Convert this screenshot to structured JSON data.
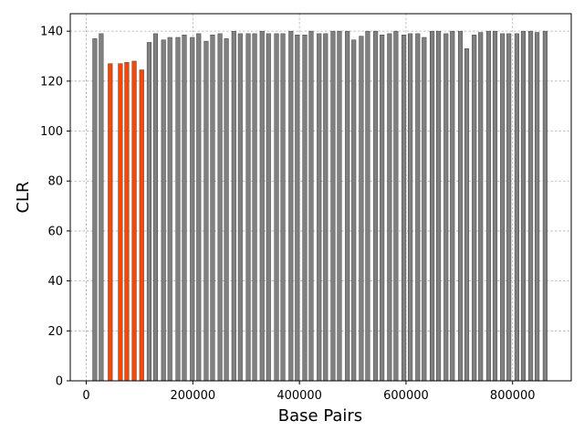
{
  "chart_data": {
    "type": "bar",
    "title": "",
    "xlabel": "Base Pairs",
    "ylabel": "CLR",
    "xlim": [
      -30000,
      910000
    ],
    "ylim": [
      0,
      147
    ],
    "xticks": [
      0,
      200000,
      400000,
      600000,
      800000
    ],
    "xtick_labels": [
      "0",
      "200000",
      "400000",
      "600000",
      "800000"
    ],
    "yticks": [
      0,
      20,
      40,
      60,
      80,
      100,
      120,
      140
    ],
    "ytick_labels": [
      "0",
      "20",
      "40",
      "60",
      "80",
      "100",
      "120",
      "140"
    ],
    "grid": true,
    "bar_width": 7900,
    "colors": {
      "default": "#808080",
      "highlight": "#ff4500",
      "edge": "#404040"
    },
    "x": [
      16000,
      28000,
      45000,
      64000,
      76000,
      90000,
      104000,
      118000,
      130000,
      145000,
      157000,
      172000,
      184000,
      199000,
      211000,
      225000,
      237000,
      251000,
      263000,
      277000,
      289000,
      304000,
      316000,
      330000,
      342000,
      357000,
      369000,
      384000,
      396000,
      410000,
      422000,
      437000,
      449000,
      463000,
      475000,
      490000,
      502000,
      516000,
      528000,
      543000,
      555000,
      569000,
      581000,
      596000,
      608000,
      622000,
      634000,
      649000,
      661000,
      675000,
      687000,
      702000,
      714000,
      728000,
      740000,
      755000,
      767000,
      781000,
      793000,
      808000,
      820000,
      834000,
      846000,
      861000
    ],
    "values": [
      137,
      139,
      127,
      127,
      127.5,
      128,
      124.5,
      135.5,
      139,
      136.5,
      137.5,
      137.5,
      138.5,
      137.5,
      139,
      136,
      138.5,
      139,
      137,
      140,
      139,
      139,
      139,
      140,
      139,
      139,
      139,
      140,
      138.5,
      138.5,
      140,
      139,
      139,
      140,
      140,
      140,
      136.5,
      138,
      140,
      140,
      138.5,
      139,
      140,
      138.5,
      139,
      139,
      137.5,
      140,
      140,
      139,
      140,
      140,
      133,
      138.5,
      139.5,
      140,
      140,
      139,
      139,
      139,
      140,
      140,
      139.5,
      140
    ],
    "highlight": [
      false,
      false,
      true,
      true,
      true,
      true,
      true,
      false,
      false,
      false,
      false,
      false,
      false,
      false,
      false,
      false,
      false,
      false,
      false,
      false,
      false,
      false,
      false,
      false,
      false,
      false,
      false,
      false,
      false,
      false,
      false,
      false,
      false,
      false,
      false,
      false,
      false,
      false,
      false,
      false,
      false,
      false,
      false,
      false,
      false,
      false,
      false,
      false,
      false,
      false,
      false,
      false,
      false,
      false,
      false,
      false,
      false,
      false,
      false,
      false,
      false,
      false,
      false,
      false
    ]
  }
}
